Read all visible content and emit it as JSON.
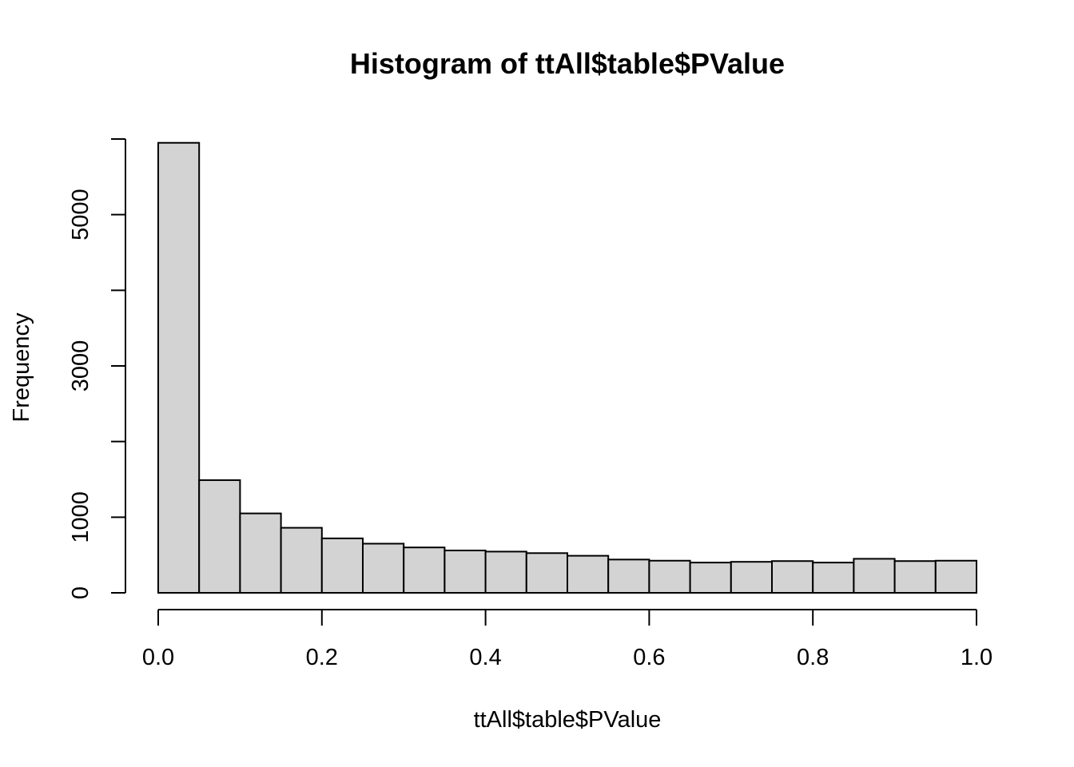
{
  "chart_data": {
    "type": "bar",
    "title": "Histogram of ttAll$table$PValue",
    "xlabel": "ttAll$table$PValue",
    "ylabel": "Frequency",
    "bin_edges": [
      0.0,
      0.05,
      0.1,
      0.15,
      0.2,
      0.25,
      0.3,
      0.35,
      0.4,
      0.45,
      0.5,
      0.55,
      0.6,
      0.65,
      0.7,
      0.75,
      0.8,
      0.85,
      0.9,
      0.95,
      1.0
    ],
    "values": [
      5950,
      1490,
      1050,
      860,
      720,
      650,
      600,
      560,
      545,
      525,
      490,
      440,
      425,
      400,
      410,
      420,
      400,
      450,
      420,
      425
    ],
    "xlim": [
      0,
      1
    ],
    "ylim": [
      0,
      6000
    ],
    "x_ticks": [
      0.0,
      0.2,
      0.4,
      0.6,
      0.8,
      1.0
    ],
    "x_tick_labels": [
      "0.0",
      "0.2",
      "0.4",
      "0.6",
      "0.8",
      "1.0"
    ],
    "y_ticks": [
      0,
      1000,
      2000,
      3000,
      4000,
      5000,
      6000
    ],
    "y_tick_labels": [
      "0",
      "1000",
      "",
      "3000",
      "",
      "5000",
      ""
    ],
    "bar_color": "#d3d3d3",
    "grid": false
  }
}
